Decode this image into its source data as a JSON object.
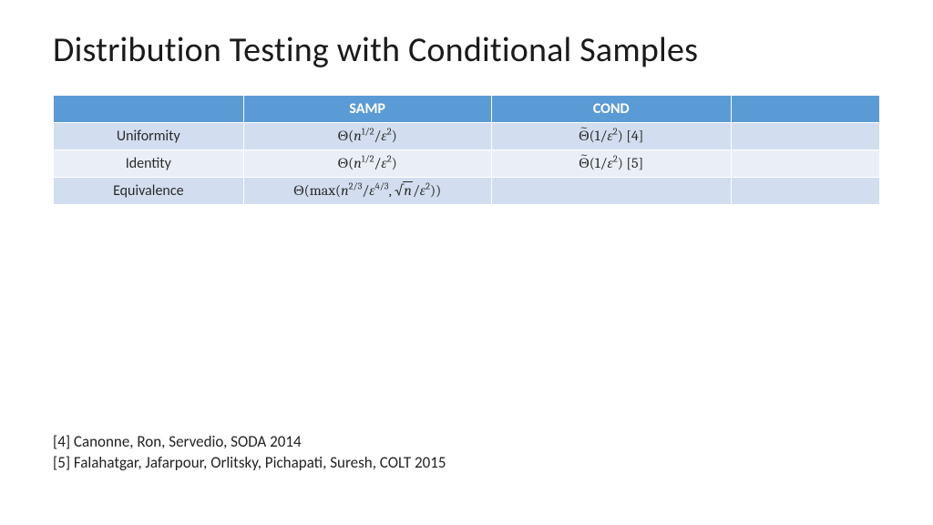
{
  "title": "Distribution Testing with Conditional Samples",
  "table": {
    "header_bg": "#5b9bd5",
    "header_fg": "#ffffff",
    "row_colors": [
      "#d2deef",
      "#eaeff7",
      "#d2deef"
    ],
    "col_widths_pct": [
      23,
      30,
      29,
      18
    ],
    "columns": [
      "",
      "SAMP",
      "COND",
      ""
    ],
    "rows": [
      {
        "label": "Uniformity",
        "samp_html": "Θ(<i>n</i><sup>1/2</sup>/<i>ε</i><sup>2</sup>)",
        "cond_html": "<span class=\"tilde\">Θ</span>(1/<i>ε</i><sup>2</sup>) [4]",
        "extra": ""
      },
      {
        "label": "Identity",
        "samp_html": "Θ(<i>n</i><sup>1/2</sup>/<i>ε</i><sup>2</sup>)",
        "cond_html": "<span class=\"tilde\">Θ</span>(1/<i>ε</i><sup>2</sup>) [5]",
        "extra": ""
      },
      {
        "label": "Equivalence",
        "samp_html": "Θ(max(<i>n</i><sup>2/3</sup>/<i>ε</i><sup>4/3</sup>, <span class=\"sqrt\"><span><i>n</i></span></span>/<i>ε</i><sup>2</sup>))",
        "cond_html": "",
        "extra": ""
      }
    ]
  },
  "references": [
    "[4] Canonne, Ron, Servedio, SODA 2014",
    "[5] Falahatgar, Jafarpour, Orlitsky, Pichapati, Suresh, COLT 2015"
  ],
  "fonts": {
    "title_size_pt": 28,
    "header_size_pt": 12,
    "cell_size_pt": 12,
    "ref_size_pt": 13
  }
}
